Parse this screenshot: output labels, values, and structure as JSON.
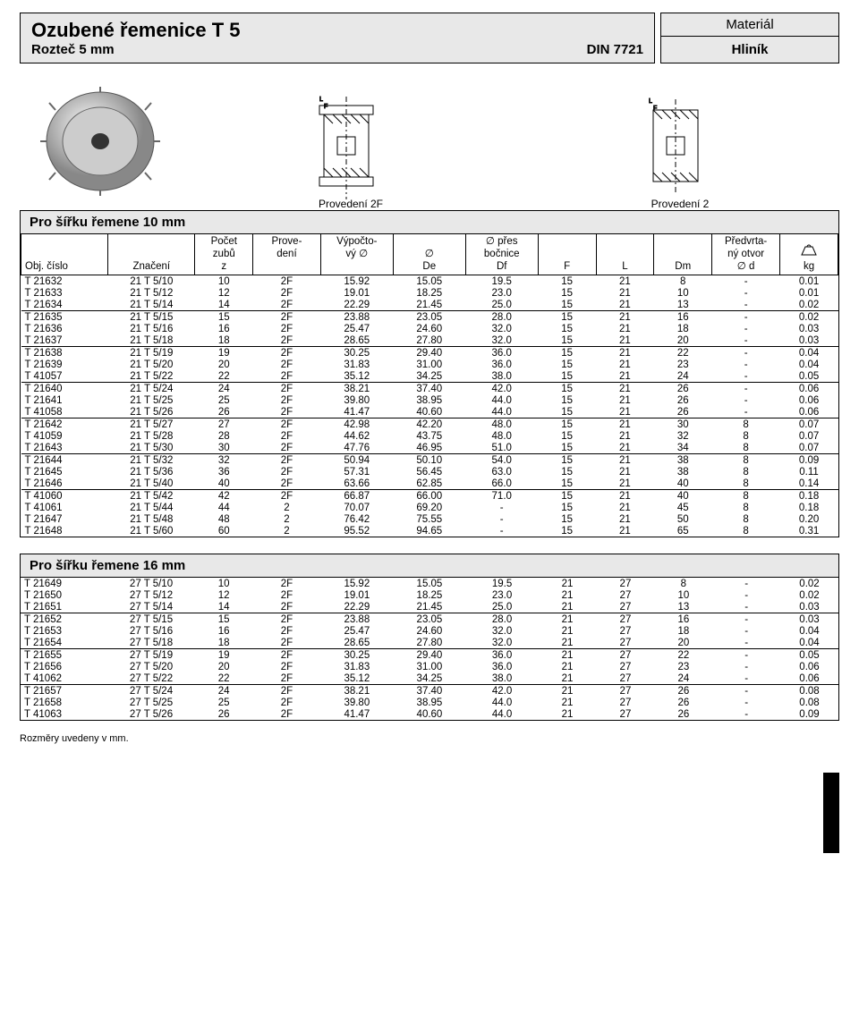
{
  "header": {
    "title": "Ozubené řemenice  T 5",
    "pitch": "Rozteč  5 mm",
    "din": "DIN 7721",
    "material_label": "Materiál",
    "material_value": "Hliník"
  },
  "diagrams": {
    "label_2f": "Provedení 2F",
    "label_2": "Provedení 2"
  },
  "section1_title": "Pro šířku řemene 10 mm",
  "section2_title": "Pro šířku řemene 16 mm",
  "columns": {
    "obj": "Obj. číslo",
    "mark": "Značení",
    "z_top": "Počet",
    "z_mid": "zubů",
    "z_bot": "z",
    "prov_top": "Prove-",
    "prov_bot": "dení",
    "vyv_top": "Výpočto-",
    "vyv_bot": "vý  ∅",
    "de_top": "∅",
    "de_bot": "De",
    "df_top": "∅ přes",
    "df_mid": "bočnice",
    "df_bot": "Df",
    "f": "F",
    "l": "L",
    "dm": "Dm",
    "d_top": "Předvrta-",
    "d_mid": "ný otvor",
    "d_bot": "∅  d",
    "kg": "kg"
  },
  "rows1": [
    {
      "obj": "T 21632",
      "mark": "21 T 5/10",
      "z": "10",
      "prov": "2F",
      "vyv": "15.92",
      "de": "15.05",
      "df": "19.5",
      "f": "15",
      "l": "21",
      "dm": "8",
      "d": "-",
      "kg": "0.01"
    },
    {
      "obj": "T 21633",
      "mark": "21 T 5/12",
      "z": "12",
      "prov": "2F",
      "vyv": "19.01",
      "de": "18.25",
      "df": "23.0",
      "f": "15",
      "l": "21",
      "dm": "10",
      "d": "-",
      "kg": "0.01"
    },
    {
      "obj": "T 21634",
      "mark": "21 T 5/14",
      "z": "14",
      "prov": "2F",
      "vyv": "22.29",
      "de": "21.45",
      "df": "25.0",
      "f": "15",
      "l": "21",
      "dm": "13",
      "d": "-",
      "kg": "0.02",
      "sep": true
    },
    {
      "obj": "T 21635",
      "mark": "21 T 5/15",
      "z": "15",
      "prov": "2F",
      "vyv": "23.88",
      "de": "23.05",
      "df": "28.0",
      "f": "15",
      "l": "21",
      "dm": "16",
      "d": "-",
      "kg": "0.02"
    },
    {
      "obj": "T 21636",
      "mark": "21 T 5/16",
      "z": "16",
      "prov": "2F",
      "vyv": "25.47",
      "de": "24.60",
      "df": "32.0",
      "f": "15",
      "l": "21",
      "dm": "18",
      "d": "-",
      "kg": "0.03"
    },
    {
      "obj": "T 21637",
      "mark": "21 T 5/18",
      "z": "18",
      "prov": "2F",
      "vyv": "28.65",
      "de": "27.80",
      "df": "32.0",
      "f": "15",
      "l": "21",
      "dm": "20",
      "d": "-",
      "kg": "0.03",
      "sep": true
    },
    {
      "obj": "T 21638",
      "mark": "21 T 5/19",
      "z": "19",
      "prov": "2F",
      "vyv": "30.25",
      "de": "29.40",
      "df": "36.0",
      "f": "15",
      "l": "21",
      "dm": "22",
      "d": "-",
      "kg": "0.04"
    },
    {
      "obj": "T 21639",
      "mark": "21 T 5/20",
      "z": "20",
      "prov": "2F",
      "vyv": "31.83",
      "de": "31.00",
      "df": "36.0",
      "f": "15",
      "l": "21",
      "dm": "23",
      "d": "-",
      "kg": "0.04"
    },
    {
      "obj": "T 41057",
      "mark": "21 T 5/22",
      "z": "22",
      "prov": "2F",
      "vyv": "35.12",
      "de": "34.25",
      "df": "38.0",
      "f": "15",
      "l": "21",
      "dm": "24",
      "d": "-",
      "kg": "0.05",
      "sep": true
    },
    {
      "obj": "T 21640",
      "mark": "21 T 5/24",
      "z": "24",
      "prov": "2F",
      "vyv": "38.21",
      "de": "37.40",
      "df": "42.0",
      "f": "15",
      "l": "21",
      "dm": "26",
      "d": "-",
      "kg": "0.06"
    },
    {
      "obj": "T 21641",
      "mark": "21 T 5/25",
      "z": "25",
      "prov": "2F",
      "vyv": "39.80",
      "de": "38.95",
      "df": "44.0",
      "f": "15",
      "l": "21",
      "dm": "26",
      "d": "-",
      "kg": "0.06"
    },
    {
      "obj": "T 41058",
      "mark": "21 T 5/26",
      "z": "26",
      "prov": "2F",
      "vyv": "41.47",
      "de": "40.60",
      "df": "44.0",
      "f": "15",
      "l": "21",
      "dm": "26",
      "d": "-",
      "kg": "0.06",
      "sep": true
    },
    {
      "obj": "T 21642",
      "mark": "21 T 5/27",
      "z": "27",
      "prov": "2F",
      "vyv": "42.98",
      "de": "42.20",
      "df": "48.0",
      "f": "15",
      "l": "21",
      "dm": "30",
      "d": "8",
      "kg": "0.07"
    },
    {
      "obj": "T 41059",
      "mark": "21 T 5/28",
      "z": "28",
      "prov": "2F",
      "vyv": "44.62",
      "de": "43.75",
      "df": "48.0",
      "f": "15",
      "l": "21",
      "dm": "32",
      "d": "8",
      "kg": "0.07"
    },
    {
      "obj": "T 21643",
      "mark": "21 T 5/30",
      "z": "30",
      "prov": "2F",
      "vyv": "47.76",
      "de": "46.95",
      "df": "51.0",
      "f": "15",
      "l": "21",
      "dm": "34",
      "d": "8",
      "kg": "0.07",
      "sep": true
    },
    {
      "obj": "T 21644",
      "mark": "21 T 5/32",
      "z": "32",
      "prov": "2F",
      "vyv": "50.94",
      "de": "50.10",
      "df": "54.0",
      "f": "15",
      "l": "21",
      "dm": "38",
      "d": "8",
      "kg": "0.09"
    },
    {
      "obj": "T 21645",
      "mark": "21 T 5/36",
      "z": "36",
      "prov": "2F",
      "vyv": "57.31",
      "de": "56.45",
      "df": "63.0",
      "f": "15",
      "l": "21",
      "dm": "38",
      "d": "8",
      "kg": "0.11"
    },
    {
      "obj": "T 21646",
      "mark": "21 T 5/40",
      "z": "40",
      "prov": "2F",
      "vyv": "63.66",
      "de": "62.85",
      "df": "66.0",
      "f": "15",
      "l": "21",
      "dm": "40",
      "d": "8",
      "kg": "0.14",
      "sep": true
    },
    {
      "obj": "T 41060",
      "mark": "21 T 5/42",
      "z": "42",
      "prov": "2F",
      "vyv": "66.87",
      "de": "66.00",
      "df": "71.0",
      "f": "15",
      "l": "21",
      "dm": "40",
      "d": "8",
      "kg": "0.18"
    },
    {
      "obj": "T 41061",
      "mark": "21 T 5/44",
      "z": "44",
      "prov": "2",
      "vyv": "70.07",
      "de": "69.20",
      "df": "-",
      "f": "15",
      "l": "21",
      "dm": "45",
      "d": "8",
      "kg": "0.18"
    },
    {
      "obj": "T 21647",
      "mark": "21 T 5/48",
      "z": "48",
      "prov": "2",
      "vyv": "76.42",
      "de": "75.55",
      "df": "-",
      "f": "15",
      "l": "21",
      "dm": "50",
      "d": "8",
      "kg": "0.20"
    },
    {
      "obj": "T 21648",
      "mark": "21 T 5/60",
      "z": "60",
      "prov": "2",
      "vyv": "95.52",
      "de": "94.65",
      "df": "-",
      "f": "15",
      "l": "21",
      "dm": "65",
      "d": "8",
      "kg": "0.31"
    }
  ],
  "rows2": [
    {
      "obj": "T 21649",
      "mark": "27 T 5/10",
      "z": "10",
      "prov": "2F",
      "vyv": "15.92",
      "de": "15.05",
      "df": "19.5",
      "f": "21",
      "l": "27",
      "dm": "8",
      "d": "-",
      "kg": "0.02"
    },
    {
      "obj": "T 21650",
      "mark": "27 T 5/12",
      "z": "12",
      "prov": "2F",
      "vyv": "19.01",
      "de": "18.25",
      "df": "23.0",
      "f": "21",
      "l": "27",
      "dm": "10",
      "d": "-",
      "kg": "0.02"
    },
    {
      "obj": "T 21651",
      "mark": "27 T 5/14",
      "z": "14",
      "prov": "2F",
      "vyv": "22.29",
      "de": "21.45",
      "df": "25.0",
      "f": "21",
      "l": "27",
      "dm": "13",
      "d": "-",
      "kg": "0.03",
      "sep": true
    },
    {
      "obj": "T 21652",
      "mark": "27 T 5/15",
      "z": "15",
      "prov": "2F",
      "vyv": "23.88",
      "de": "23.05",
      "df": "28.0",
      "f": "21",
      "l": "27",
      "dm": "16",
      "d": "-",
      "kg": "0.03"
    },
    {
      "obj": "T 21653",
      "mark": "27 T 5/16",
      "z": "16",
      "prov": "2F",
      "vyv": "25.47",
      "de": "24.60",
      "df": "32.0",
      "f": "21",
      "l": "27",
      "dm": "18",
      "d": "-",
      "kg": "0.04"
    },
    {
      "obj": "T 21654",
      "mark": "27 T 5/18",
      "z": "18",
      "prov": "2F",
      "vyv": "28.65",
      "de": "27.80",
      "df": "32.0",
      "f": "21",
      "l": "27",
      "dm": "20",
      "d": "-",
      "kg": "0.04",
      "sep": true
    },
    {
      "obj": "T 21655",
      "mark": "27 T 5/19",
      "z": "19",
      "prov": "2F",
      "vyv": "30.25",
      "de": "29.40",
      "df": "36.0",
      "f": "21",
      "l": "27",
      "dm": "22",
      "d": "-",
      "kg": "0.05"
    },
    {
      "obj": "T 21656",
      "mark": "27 T 5/20",
      "z": "20",
      "prov": "2F",
      "vyv": "31.83",
      "de": "31.00",
      "df": "36.0",
      "f": "21",
      "l": "27",
      "dm": "23",
      "d": "-",
      "kg": "0.06"
    },
    {
      "obj": "T 41062",
      "mark": "27 T 5/22",
      "z": "22",
      "prov": "2F",
      "vyv": "35.12",
      "de": "34.25",
      "df": "38.0",
      "f": "21",
      "l": "27",
      "dm": "24",
      "d": "-",
      "kg": "0.06",
      "sep": true
    },
    {
      "obj": "T 21657",
      "mark": "27 T 5/24",
      "z": "24",
      "prov": "2F",
      "vyv": "38.21",
      "de": "37.40",
      "df": "42.0",
      "f": "21",
      "l": "27",
      "dm": "26",
      "d": "-",
      "kg": "0.08"
    },
    {
      "obj": "T 21658",
      "mark": "27 T 5/25",
      "z": "25",
      "prov": "2F",
      "vyv": "39.80",
      "de": "38.95",
      "df": "44.0",
      "f": "21",
      "l": "27",
      "dm": "26",
      "d": "-",
      "kg": "0.08"
    },
    {
      "obj": "T 41063",
      "mark": "27 T 5/26",
      "z": "26",
      "prov": "2F",
      "vyv": "41.47",
      "de": "40.60",
      "df": "44.0",
      "f": "21",
      "l": "27",
      "dm": "26",
      "d": "-",
      "kg": "0.09"
    }
  ],
  "footer": "Rozměry uvedeny v mm."
}
